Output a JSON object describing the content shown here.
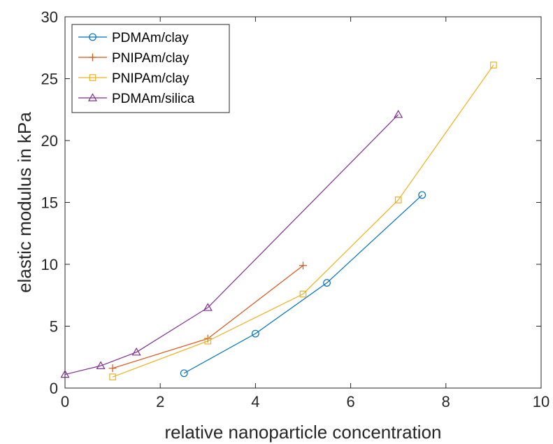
{
  "chart_data": {
    "type": "line",
    "title": "",
    "xlabel": "relative nanoparticle concentration",
    "ylabel": "elastic modulus in kPa",
    "xlim": [
      0,
      10
    ],
    "ylim": [
      0,
      30
    ],
    "xticks": [
      0,
      2,
      4,
      6,
      8,
      10
    ],
    "yticks": [
      0,
      5,
      10,
      15,
      20,
      25,
      30
    ],
    "grid": false,
    "legend_position": "top-left",
    "series": [
      {
        "name": "PDMAm/clay",
        "color": "#0072BD",
        "marker": "circle",
        "x": [
          2.5,
          4,
          5.5,
          7.5
        ],
        "y": [
          1.2,
          4.4,
          8.5,
          15.6
        ]
      },
      {
        "name": "PNIPAm/clay",
        "color": "#D95319",
        "marker": "plus",
        "x": [
          1,
          3,
          5
        ],
        "y": [
          1.6,
          4.0,
          9.9
        ]
      },
      {
        "name": "PNIPAm/clay",
        "color": "#EDB120",
        "marker": "square",
        "x": [
          1,
          3,
          5,
          7,
          9
        ],
        "y": [
          0.9,
          3.8,
          7.6,
          15.2,
          26.1
        ]
      },
      {
        "name": "PDMAm/silica",
        "color": "#7E2F8E",
        "marker": "triangle",
        "x": [
          0,
          0.75,
          1.5,
          3,
          7
        ],
        "y": [
          1.1,
          1.8,
          2.9,
          6.5,
          22.1
        ]
      }
    ]
  }
}
